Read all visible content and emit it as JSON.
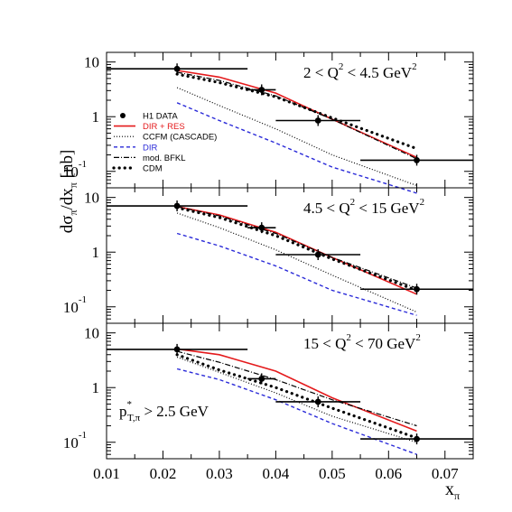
{
  "chart_data": {
    "type": "line",
    "ylabel": {
      "base": "dσ",
      "sub1": "π",
      "mid": "/dx",
      "sub2": "π",
      "unit": " [nb]"
    },
    "xlabel": {
      "base": "x",
      "sub": "π"
    },
    "xlim": [
      0.01,
      0.075
    ],
    "x_ticks": [
      "0.01",
      "0.02",
      "0.03",
      "0.04",
      "0.05",
      "0.06",
      "0.07"
    ],
    "x_tick_values": [
      0.01,
      0.02,
      0.03,
      0.04,
      0.05,
      0.06,
      0.07
    ],
    "y_scale": "log",
    "ylim": [
      0.05,
      15
    ],
    "y_tick_labels": [
      {
        "value": 10,
        "base": "10",
        "exp": ""
      },
      {
        "value": 1,
        "base": "1",
        "exp": ""
      },
      {
        "value": 0.1,
        "base": "10",
        "exp": "-1"
      }
    ],
    "cut_label": {
      "prefix": "p",
      "sup": "*",
      "sub": "T,π",
      "rest": " > 2.5 GeV"
    },
    "legend": {
      "placement": "left",
      "entries": [
        {
          "label": "H1 DATA",
          "style": "marker",
          "color": "#000000"
        },
        {
          "label": "DIR + RES",
          "style": "solid",
          "color": "#e41a1c"
        },
        {
          "label": "CCFM (CASCADE)",
          "style": "dotted-fine",
          "color": "#000000"
        },
        {
          "label": "DIR",
          "style": "dashed",
          "color": "#2a2ad8"
        },
        {
          "label": "mod. BFKL",
          "style": "dashdot",
          "color": "#000000"
        },
        {
          "label": "CDM",
          "style": "bigdots",
          "color": "#000000"
        }
      ]
    },
    "panels": [
      {
        "label": {
          "pre": "2 < Q",
          "sup": "2",
          "post": " < 4.5 GeV",
          "sup2": "2"
        },
        "data": [
          {
            "x": 0.0225,
            "xlo": 0.01,
            "xhi": 0.035,
            "y": 7.5
          },
          {
            "x": 0.0375,
            "xlo": 0.035,
            "xhi": 0.04,
            "y": 3.1
          },
          {
            "x": 0.0475,
            "xlo": 0.04,
            "xhi": 0.055,
            "y": 0.85
          },
          {
            "x": 0.065,
            "xlo": 0.055,
            "xhi": 0.075,
            "y": 0.16
          }
        ],
        "series": [
          {
            "name": "DIR + RES",
            "x": [
              0.0225,
              0.03,
              0.04,
              0.05,
              0.065
            ],
            "values": [
              7.0,
              5.3,
              2.7,
              0.9,
              0.18
            ]
          },
          {
            "name": "CCFM (CASCADE)",
            "x": [
              0.0225,
              0.03,
              0.04,
              0.05,
              0.065
            ],
            "values": [
              3.4,
              1.6,
              0.6,
              0.2,
              0.055
            ]
          },
          {
            "name": "DIR",
            "x": [
              0.0225,
              0.03,
              0.04,
              0.05,
              0.065
            ],
            "values": [
              1.8,
              0.85,
              0.33,
              0.12,
              0.04
            ]
          },
          {
            "name": "mod. BFKL",
            "x": [
              0.0225,
              0.03,
              0.04,
              0.05,
              0.065
            ],
            "values": [
              6.5,
              4.6,
              2.4,
              0.9,
              0.17
            ]
          },
          {
            "name": "CDM",
            "x": [
              0.0225,
              0.03,
              0.04,
              0.05,
              0.065
            ],
            "values": [
              6.0,
              4.2,
              2.3,
              0.95,
              0.26
            ]
          }
        ]
      },
      {
        "label": {
          "pre": "4.5 < Q",
          "sup": "2",
          "post": " < 15 GeV",
          "sup2": "2"
        },
        "data": [
          {
            "x": 0.0225,
            "xlo": 0.01,
            "xhi": 0.035,
            "y": 7.0
          },
          {
            "x": 0.0375,
            "xlo": 0.035,
            "xhi": 0.04,
            "y": 2.8
          },
          {
            "x": 0.0475,
            "xlo": 0.04,
            "xhi": 0.055,
            "y": 0.9
          },
          {
            "x": 0.065,
            "xlo": 0.055,
            "xhi": 0.075,
            "y": 0.21
          }
        ],
        "series": [
          {
            "name": "DIR + RES",
            "x": [
              0.0225,
              0.03,
              0.04,
              0.05,
              0.065
            ],
            "values": [
              6.8,
              4.8,
              2.3,
              0.8,
              0.17
            ]
          },
          {
            "name": "CCFM (CASCADE)",
            "x": [
              0.0225,
              0.03,
              0.04,
              0.05,
              0.065
            ],
            "values": [
              5.2,
              2.8,
              1.1,
              0.38,
              0.08
            ]
          },
          {
            "name": "DIR",
            "x": [
              0.0225,
              0.03,
              0.04,
              0.05,
              0.065
            ],
            "values": [
              2.2,
              1.3,
              0.56,
              0.2,
              0.07
            ]
          },
          {
            "name": "mod. BFKL",
            "x": [
              0.0225,
              0.03,
              0.04,
              0.05,
              0.065
            ],
            "values": [
              6.8,
              4.6,
              2.2,
              0.8,
              0.22
            ]
          },
          {
            "name": "CDM",
            "x": [
              0.0225,
              0.03,
              0.04,
              0.05,
              0.065
            ],
            "values": [
              6.5,
              4.3,
              2.0,
              0.75,
              0.2
            ]
          }
        ]
      },
      {
        "label": {
          "pre": "15 < Q",
          "sup": "2",
          "post": " < 70 GeV",
          "sup2": "2"
        },
        "data": [
          {
            "x": 0.0225,
            "xlo": 0.01,
            "xhi": 0.035,
            "y": 5.0
          },
          {
            "x": 0.0375,
            "xlo": 0.035,
            "xhi": 0.04,
            "y": 1.45
          },
          {
            "x": 0.0475,
            "xlo": 0.04,
            "xhi": 0.055,
            "y": 0.55
          },
          {
            "x": 0.065,
            "xlo": 0.055,
            "xhi": 0.075,
            "y": 0.115
          }
        ],
        "series": [
          {
            "name": "DIR + RES",
            "x": [
              0.0225,
              0.03,
              0.04,
              0.05,
              0.065
            ],
            "values": [
              5.1,
              4.0,
              2.0,
              0.65,
              0.16
            ]
          },
          {
            "name": "CCFM (CASCADE)",
            "x": [
              0.0225,
              0.03,
              0.04,
              0.05,
              0.065
            ],
            "values": [
              3.6,
              1.9,
              0.8,
              0.3,
              0.1
            ]
          },
          {
            "name": "DIR",
            "x": [
              0.0225,
              0.03,
              0.04,
              0.05,
              0.065
            ],
            "values": [
              2.2,
              1.4,
              0.6,
              0.22,
              0.06
            ]
          },
          {
            "name": "mod. BFKL",
            "x": [
              0.0225,
              0.03,
              0.04,
              0.05,
              0.065
            ],
            "values": [
              4.6,
              2.9,
              1.4,
              0.6,
              0.2
            ]
          },
          {
            "name": "CDM",
            "x": [
              0.0225,
              0.03,
              0.04,
              0.05,
              0.065
            ],
            "values": [
              4.0,
              2.1,
              1.0,
              0.42,
              0.12
            ]
          }
        ]
      }
    ]
  }
}
